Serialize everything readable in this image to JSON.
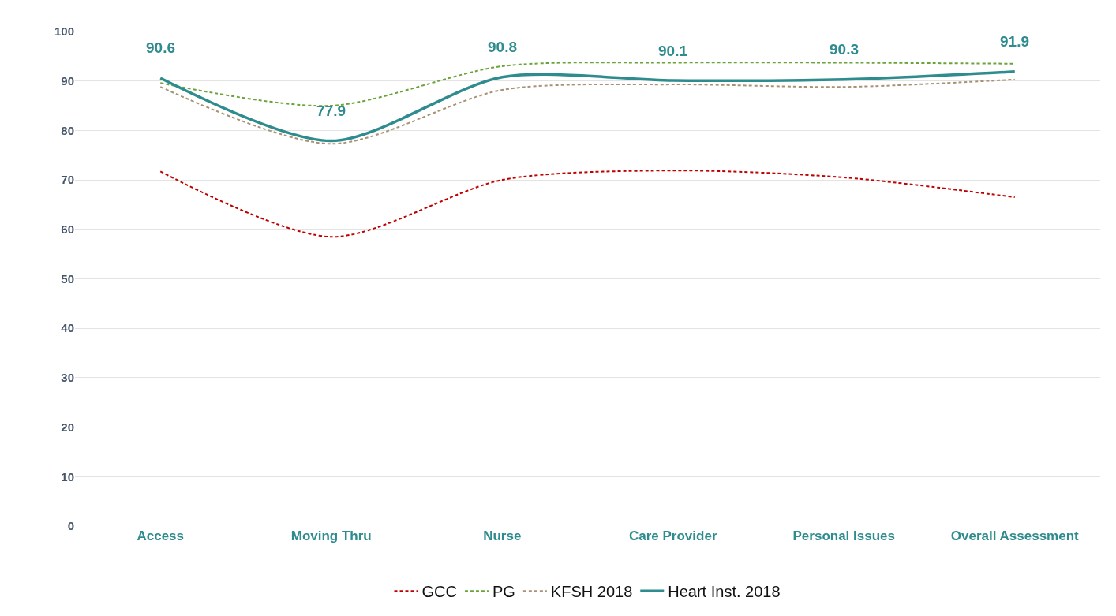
{
  "chart_data": {
    "type": "line",
    "categories": [
      "Access",
      "Moving Thru",
      "Nurse",
      "Care Provider",
      "Personal Issues",
      "Overall Assessment"
    ],
    "ylim": [
      0,
      100
    ],
    "yticks": [
      0,
      10,
      20,
      30,
      40,
      50,
      60,
      70,
      80,
      90,
      100
    ],
    "grid": "y",
    "legend": "bottom",
    "marker": "none",
    "series": [
      {
        "name": "GCC",
        "color": "#c00000",
        "line_style": "dashed",
        "values": [
          71.7,
          58.5,
          70,
          71.9,
          70.5,
          66.5
        ]
      },
      {
        "name": "PG",
        "color": "#6aa339",
        "line_style": "dashed",
        "values": [
          89.6,
          85,
          93,
          93.7,
          93.7,
          93.5
        ]
      },
      {
        "name": "KFSH 2018",
        "color": "#a89274",
        "line_style": "dashed",
        "values": [
          88.8,
          77.3,
          88.2,
          89.3,
          88.8,
          90.3
        ]
      },
      {
        "name": "Heart Inst. 2018",
        "color": "#2e8b8e",
        "line_style": "solid",
        "values": [
          90.6,
          77.9,
          90.8,
          90.1,
          90.3,
          91.9
        ],
        "value_labels": [
          "90.6",
          "77.9",
          "90.8",
          "90.1",
          "90.3",
          "91.9"
        ]
      }
    ]
  }
}
